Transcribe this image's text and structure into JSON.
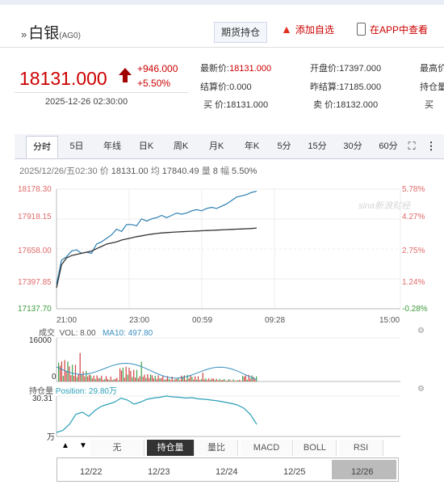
{
  "header": {
    "chevron": "»",
    "name": "白银",
    "code": "(AG0)",
    "hold_button": "期货持仓",
    "fav_label": "添加自选",
    "app_label": "在APP中查看"
  },
  "quote": {
    "price": "18131.000",
    "change": "+946.000",
    "change_pct": "+5.50%",
    "time": "2025-12-26 02:30:00",
    "fields": [
      {
        "label": "最新价:",
        "value": "18131.000",
        "red": true
      },
      {
        "label": "开盘价:",
        "value": "17397.000",
        "red": false
      },
      {
        "label": "最高价",
        "value": "",
        "red": false
      },
      {
        "label": "结算价:",
        "value": "0.000",
        "red": false
      },
      {
        "label": "昨结算:",
        "value": "17185.000",
        "red": false
      },
      {
        "label": "持仓量",
        "value": "",
        "red": false
      },
      {
        "label": "买 价:",
        "value": "18131.000",
        "red": false
      },
      {
        "label": "卖 价:",
        "value": "18132.000",
        "red": false
      },
      {
        "label": "买",
        "value": "",
        "red": false
      }
    ]
  },
  "tabs": [
    "分时",
    "5日",
    "年线",
    "日K",
    "周K",
    "月K",
    "年K",
    "5分",
    "15分",
    "30分",
    "60分"
  ],
  "tab_active": "分时",
  "info": {
    "date": "2025/12/26/五02:30",
    "price_label": "价",
    "price": "18131.00",
    "avg_label": "均",
    "avg": "17840.49",
    "vol_label": "量",
    "vol": "8",
    "amp_label": "幅",
    "amp": "5.50%"
  },
  "watermark": "sina新浪财经",
  "chart_data": {
    "type": "line",
    "y_left": [
      "18178.30",
      "17918.15",
      "17658.00",
      "17397.85",
      "17137.70"
    ],
    "y_right": [
      "5.78%",
      "4.27%",
      "2.75%",
      "1.24%",
      "-0.28%"
    ],
    "x_ticks": [
      "21:00",
      "23:00",
      "00:59",
      "09:28",
      "15:00"
    ],
    "ylim": [
      17137.7,
      18178.3
    ],
    "series": [
      {
        "color": "#2a7fb0",
        "values": [
          17350,
          17560,
          17590,
          17640,
          17650,
          17620,
          17630,
          17620,
          17700,
          17720,
          17750,
          17780,
          17830,
          17810,
          17870,
          17870,
          17860,
          17920,
          17900,
          17920,
          17930,
          17950,
          17930,
          17950,
          17970,
          17960,
          17970,
          17990,
          18000,
          17990,
          18010,
          18020,
          18010,
          18030,
          18050,
          18080,
          18110,
          18120,
          18131,
          18150,
          18160
        ]
      },
      {
        "color": "#333333",
        "values": [
          17320,
          17520,
          17580,
          17600,
          17610,
          17620,
          17630,
          17640,
          17660,
          17680,
          17700,
          17710,
          17720,
          17735,
          17745,
          17755,
          17765,
          17772,
          17780,
          17787,
          17792,
          17797,
          17800,
          17803,
          17806,
          17808,
          17810,
          17812,
          17814,
          17816,
          17818,
          17820,
          17822,
          17824,
          17826,
          17828,
          17830,
          17832,
          17834,
          17836,
          17840
        ]
      }
    ]
  },
  "volume": {
    "label": "成交",
    "vol_text": "VOL: 8.00",
    "ma_text": "MA10: 497.80",
    "max_label": "16000",
    "min_label": "0"
  },
  "open_interest": {
    "label": "持仓量",
    "pos_text": "Position: 29.80万",
    "top": "30.31",
    "bottom": "万"
  },
  "subtabs": [
    "无",
    "持仓量",
    "量比",
    "MACD",
    "BOLL",
    "RSI"
  ],
  "subtab_active": "持仓量",
  "nav": [
    "▲",
    "▼"
  ],
  "dates": [
    "12/22",
    "12/23",
    "12/24",
    "12/25",
    "12/26"
  ]
}
